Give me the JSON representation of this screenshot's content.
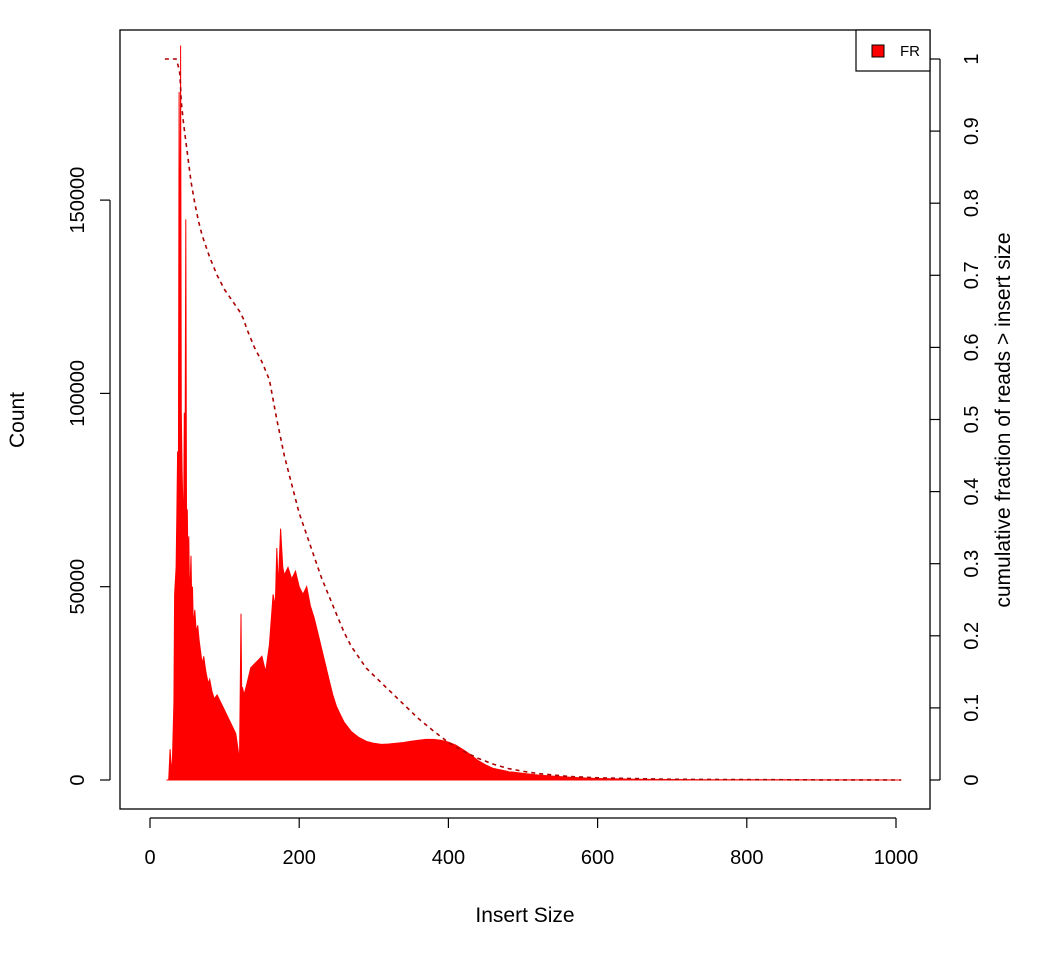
{
  "chart_data": {
    "type": "area",
    "xlabel": "Insert Size",
    "ylabel": "Count",
    "y2label": "cumulative fraction of reads > insert size",
    "xlim": [
      0,
      1000
    ],
    "ylim": [
      0,
      190000
    ],
    "y2lim": [
      0,
      1
    ],
    "x_ticks": [
      "0",
      "200",
      "400",
      "600",
      "800",
      "1000"
    ],
    "y_ticks": [
      "0",
      "50000",
      "100000",
      "150000"
    ],
    "y2_ticks": [
      "0",
      "0.1",
      "0.2",
      "0.3",
      "0.4",
      "0.5",
      "0.6",
      "0.7",
      "0.8",
      "0.9",
      "1"
    ],
    "grid": false,
    "legend": {
      "position": "top-right",
      "entries": [
        {
          "label": "FR",
          "color": "#ff0000"
        }
      ]
    },
    "series": [
      {
        "name": "FR",
        "kind": "histogram",
        "color": "#ff0000",
        "x": [
          22,
          25,
          27,
          29,
          30,
          32,
          33,
          35,
          36,
          37,
          38,
          39,
          40,
          41,
          42,
          43,
          44,
          45,
          46,
          47,
          48,
          49,
          50,
          51,
          52,
          53,
          54,
          55,
          56,
          57,
          58,
          60,
          62,
          64,
          66,
          68,
          70,
          72,
          75,
          78,
          80,
          83,
          86,
          90,
          95,
          100,
          105,
          110,
          115,
          118,
          120,
          121,
          122,
          123,
          124,
          126,
          130,
          135,
          140,
          145,
          150,
          155,
          160,
          165,
          168,
          170,
          172,
          175,
          178,
          180,
          185,
          190,
          195,
          200,
          205,
          210,
          215,
          220,
          225,
          230,
          235,
          240,
          245,
          250,
          255,
          260,
          270,
          280,
          290,
          300,
          310,
          320,
          330,
          340,
          350,
          360,
          370,
          380,
          390,
          400,
          410,
          420,
          430,
          440,
          450,
          460,
          480,
          500,
          520,
          540,
          560,
          580,
          600,
          620,
          650,
          700,
          750,
          800,
          850,
          900,
          950,
          1007
        ],
        "y": [
          0,
          0,
          8000,
          2000,
          5000,
          20000,
          48000,
          55000,
          70000,
          85000,
          62000,
          178000,
          105000,
          190000,
          95000,
          80000,
          72000,
          65000,
          95000,
          85000,
          145000,
          60000,
          70000,
          55000,
          63000,
          48000,
          52000,
          58000,
          45000,
          50000,
          40000,
          44000,
          38000,
          40000,
          36000,
          33000,
          30000,
          32000,
          28000,
          25000,
          26000,
          23000,
          21000,
          22000,
          20000,
          18000,
          16000,
          14000,
          12000,
          8000,
          5000,
          25000,
          43000,
          20000,
          24000,
          22000,
          25000,
          29000,
          30000,
          31000,
          32000,
          28000,
          35000,
          48000,
          45000,
          60000,
          50000,
          65000,
          55000,
          53000,
          55000,
          52000,
          54000,
          50000,
          48000,
          50000,
          45000,
          42000,
          38000,
          34000,
          30000,
          26000,
          22000,
          19000,
          17000,
          15000,
          12500,
          11000,
          10000,
          9500,
          9200,
          9300,
          9500,
          9700,
          10000,
          10300,
          10500,
          10500,
          10300,
          9800,
          9000,
          7800,
          6500,
          5000,
          3900,
          3000,
          2200,
          1700,
          1300,
          1000,
          750,
          550,
          400,
          300,
          200,
          120,
          80,
          60,
          40,
          30,
          20,
          10
        ]
      },
      {
        "name": "cumulative",
        "kind": "cdf",
        "color": "#aa0000",
        "x": [
          20,
          30,
          35,
          38,
          40,
          41,
          42,
          45,
          50,
          55,
          60,
          65,
          70,
          80,
          90,
          100,
          110,
          120,
          125,
          130,
          140,
          150,
          160,
          170,
          180,
          190,
          200,
          210,
          220,
          230,
          240,
          250,
          260,
          270,
          280,
          290,
          300,
          320,
          340,
          360,
          380,
          400,
          420,
          440,
          460,
          480,
          500,
          520,
          540,
          560,
          580,
          600,
          650,
          700,
          800,
          900,
          1007
        ],
        "y": [
          1.0,
          1.0,
          1.0,
          0.99,
          0.98,
          0.96,
          0.94,
          0.91,
          0.87,
          0.83,
          0.8,
          0.775,
          0.755,
          0.725,
          0.7,
          0.68,
          0.665,
          0.65,
          0.64,
          0.625,
          0.6,
          0.58,
          0.555,
          0.5,
          0.45,
          0.41,
          0.37,
          0.34,
          0.31,
          0.28,
          0.255,
          0.23,
          0.205,
          0.185,
          0.17,
          0.155,
          0.145,
          0.125,
          0.105,
          0.085,
          0.068,
          0.052,
          0.04,
          0.03,
          0.022,
          0.016,
          0.012,
          0.009,
          0.007,
          0.005,
          0.004,
          0.003,
          0.002,
          0.001,
          0.0005,
          0.0002,
          0
        ]
      }
    ]
  }
}
